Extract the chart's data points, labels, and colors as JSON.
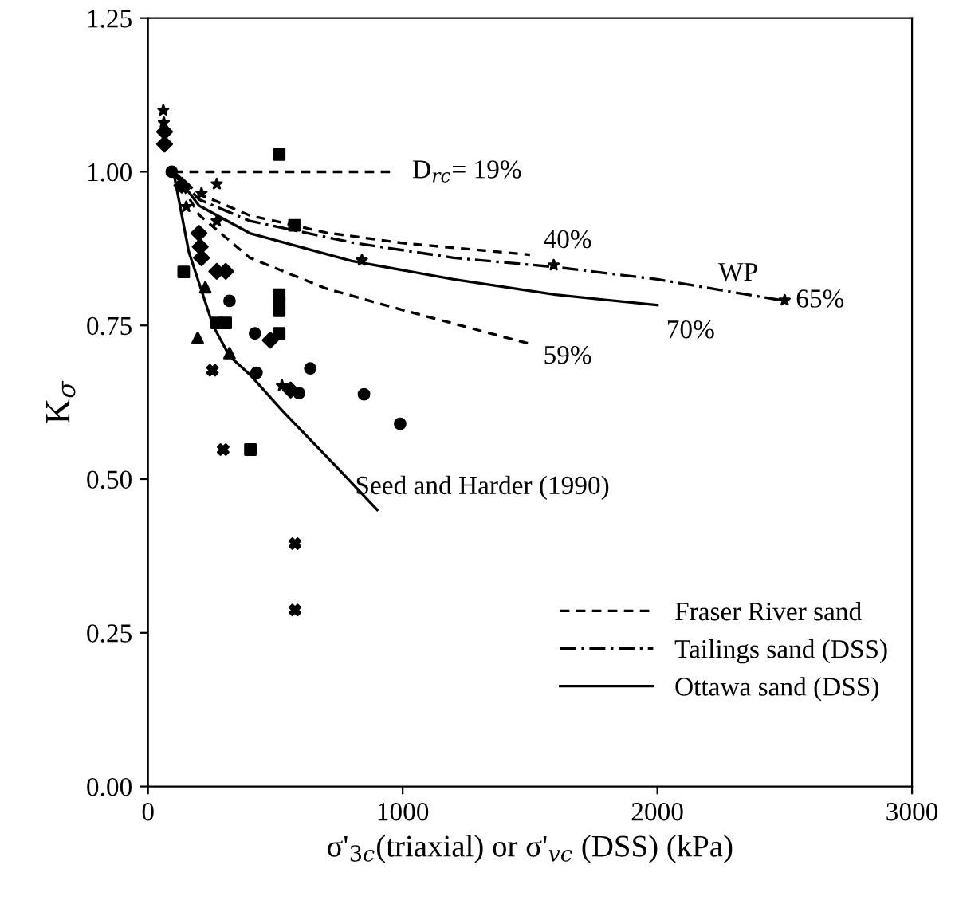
{
  "chart_data": {
    "type": "scatter",
    "xlabel": "σ'$_{3c}$(triaxial) or σ'$_{vc}$ (DSS) (kPa)",
    "ylabel": "K$_{σ}$",
    "xlim": [
      0,
      3000
    ],
    "xticks": [
      0,
      1000,
      2000,
      3000
    ],
    "ylim": [
      0,
      1.25
    ],
    "yticks": [
      {
        "value": 0,
        "label": "0.00"
      },
      {
        "value": 0.25,
        "label": "0.25"
      },
      {
        "value": 0.5,
        "label": "0.50"
      },
      {
        "value": 0.75,
        "label": "0.75"
      },
      {
        "value": 1.0,
        "label": "1.00"
      },
      {
        "value": 1.25,
        "label": "1.25"
      }
    ],
    "grid": false,
    "legend": "bottom right",
    "series": [
      {
        "type": "line",
        "name": "Fraser River sand",
        "color": "#000000",
        "line_style": "dashed",
        "marker": "none",
        "x": [
          100,
          950
        ],
        "values": [
          1.0,
          1.0
        ]
      },
      {
        "type": "line",
        "color": "#000000",
        "line_style": "dashed",
        "marker": "none",
        "x": [
          100,
          200,
          400,
          700,
          1000,
          1500
        ],
        "values": [
          1.0,
          0.964,
          0.929,
          0.901,
          0.884,
          0.865
        ]
      },
      {
        "type": "line",
        "color": "#000000",
        "line_style": "dashed",
        "marker": "none",
        "x": [
          100,
          200,
          400,
          700,
          1000,
          1500
        ],
        "values": [
          1.0,
          0.93,
          0.86,
          0.81,
          0.775,
          0.72
        ]
      },
      {
        "type": "line",
        "name": "Tailings sand (DSS)",
        "color": "#000000",
        "line_style": "dashdot",
        "marker": "none",
        "x": [
          100,
          200,
          400,
          800,
          1200,
          1600,
          2000,
          2500
        ],
        "values": [
          1.0,
          0.955,
          0.92,
          0.885,
          0.86,
          0.845,
          0.825,
          0.79
        ]
      },
      {
        "type": "line",
        "name": "Ottawa sand (DSS)",
        "color": "#000000",
        "line_style": "solid",
        "marker": "none",
        "x": [
          100,
          200,
          400,
          800,
          1200,
          1600,
          2000
        ],
        "values": [
          1.0,
          0.945,
          0.9,
          0.855,
          0.825,
          0.8,
          0.783
        ]
      },
      {
        "type": "line",
        "color": "#000000",
        "line_style": "solid",
        "marker": "none",
        "x": [
          100,
          160,
          255,
          320,
          400,
          530,
          740,
          900
        ],
        "values": [
          1.0,
          0.87,
          0.75,
          0.7,
          0.67,
          0.61,
          0.52,
          0.45
        ]
      },
      {
        "color": "#000000",
        "marker": "star",
        "x": [
          60,
          62,
          210,
          270,
          150,
          270,
          526
        ],
        "values": [
          1.1,
          1.08,
          0.965,
          0.98,
          0.943,
          0.92,
          0.652
        ]
      },
      {
        "color": "#000000",
        "marker": "diamond",
        "x": [
          65,
          65,
          133,
          270,
          305,
          200,
          205,
          210,
          480,
          560
        ],
        "values": [
          1.065,
          1.045,
          0.978,
          0.838,
          0.838,
          0.9,
          0.878,
          0.86,
          0.726,
          0.645
        ]
      },
      {
        "color": "#000000",
        "marker": "square",
        "x": [
          140,
          270,
          305
        ],
        "values": [
          0.837,
          0.754,
          0.754
        ]
      },
      {
        "color": "#000000",
        "marker": "circle",
        "x": [
          93,
          426,
          593,
          320,
          420,
          637,
          848,
          990
        ],
        "values": [
          1.0,
          0.673,
          0.64,
          0.79,
          0.737,
          0.68,
          0.638,
          0.59
        ]
      },
      {
        "color": "#000000",
        "marker": "cross",
        "x": [
          577,
          577,
          295,
          253
        ],
        "values": [
          0.395,
          0.287,
          0.548,
          0.677
        ]
      },
      {
        "color": "#000000",
        "marker": "square",
        "x": [
          515,
          575,
          515,
          515,
          515,
          515,
          402
        ],
        "values": [
          1.028,
          0.913,
          0.8,
          0.787,
          0.774,
          0.737,
          0.548
        ]
      },
      {
        "color": "#000000",
        "marker": "triangle",
        "x": [
          225,
          195,
          320
        ],
        "values": [
          0.812,
          0.73,
          0.705
        ]
      },
      {
        "color": "#000000",
        "marker": "star",
        "x": [
          840,
          1593,
          2500
        ],
        "values": [
          0.856,
          0.848,
          0.791
        ]
      }
    ],
    "annotations": [
      {
        "text": "D$_{rc}$= 19%",
        "x": 950,
        "y": 1.0
      },
      {
        "text": "40%",
        "x": 1500,
        "y": 0.865
      },
      {
        "text": "WP",
        "x": 2500,
        "y": 0.79
      },
      {
        "text": "65%",
        "x": 2500,
        "y": 0.79
      },
      {
        "text": "70%",
        "x": 2000,
        "y": 0.783
      },
      {
        "text": "59%",
        "x": 1500,
        "y": 0.72
      },
      {
        "text": "Seed and Harder (1990)",
        "x": 900,
        "y": 0.45
      }
    ]
  }
}
